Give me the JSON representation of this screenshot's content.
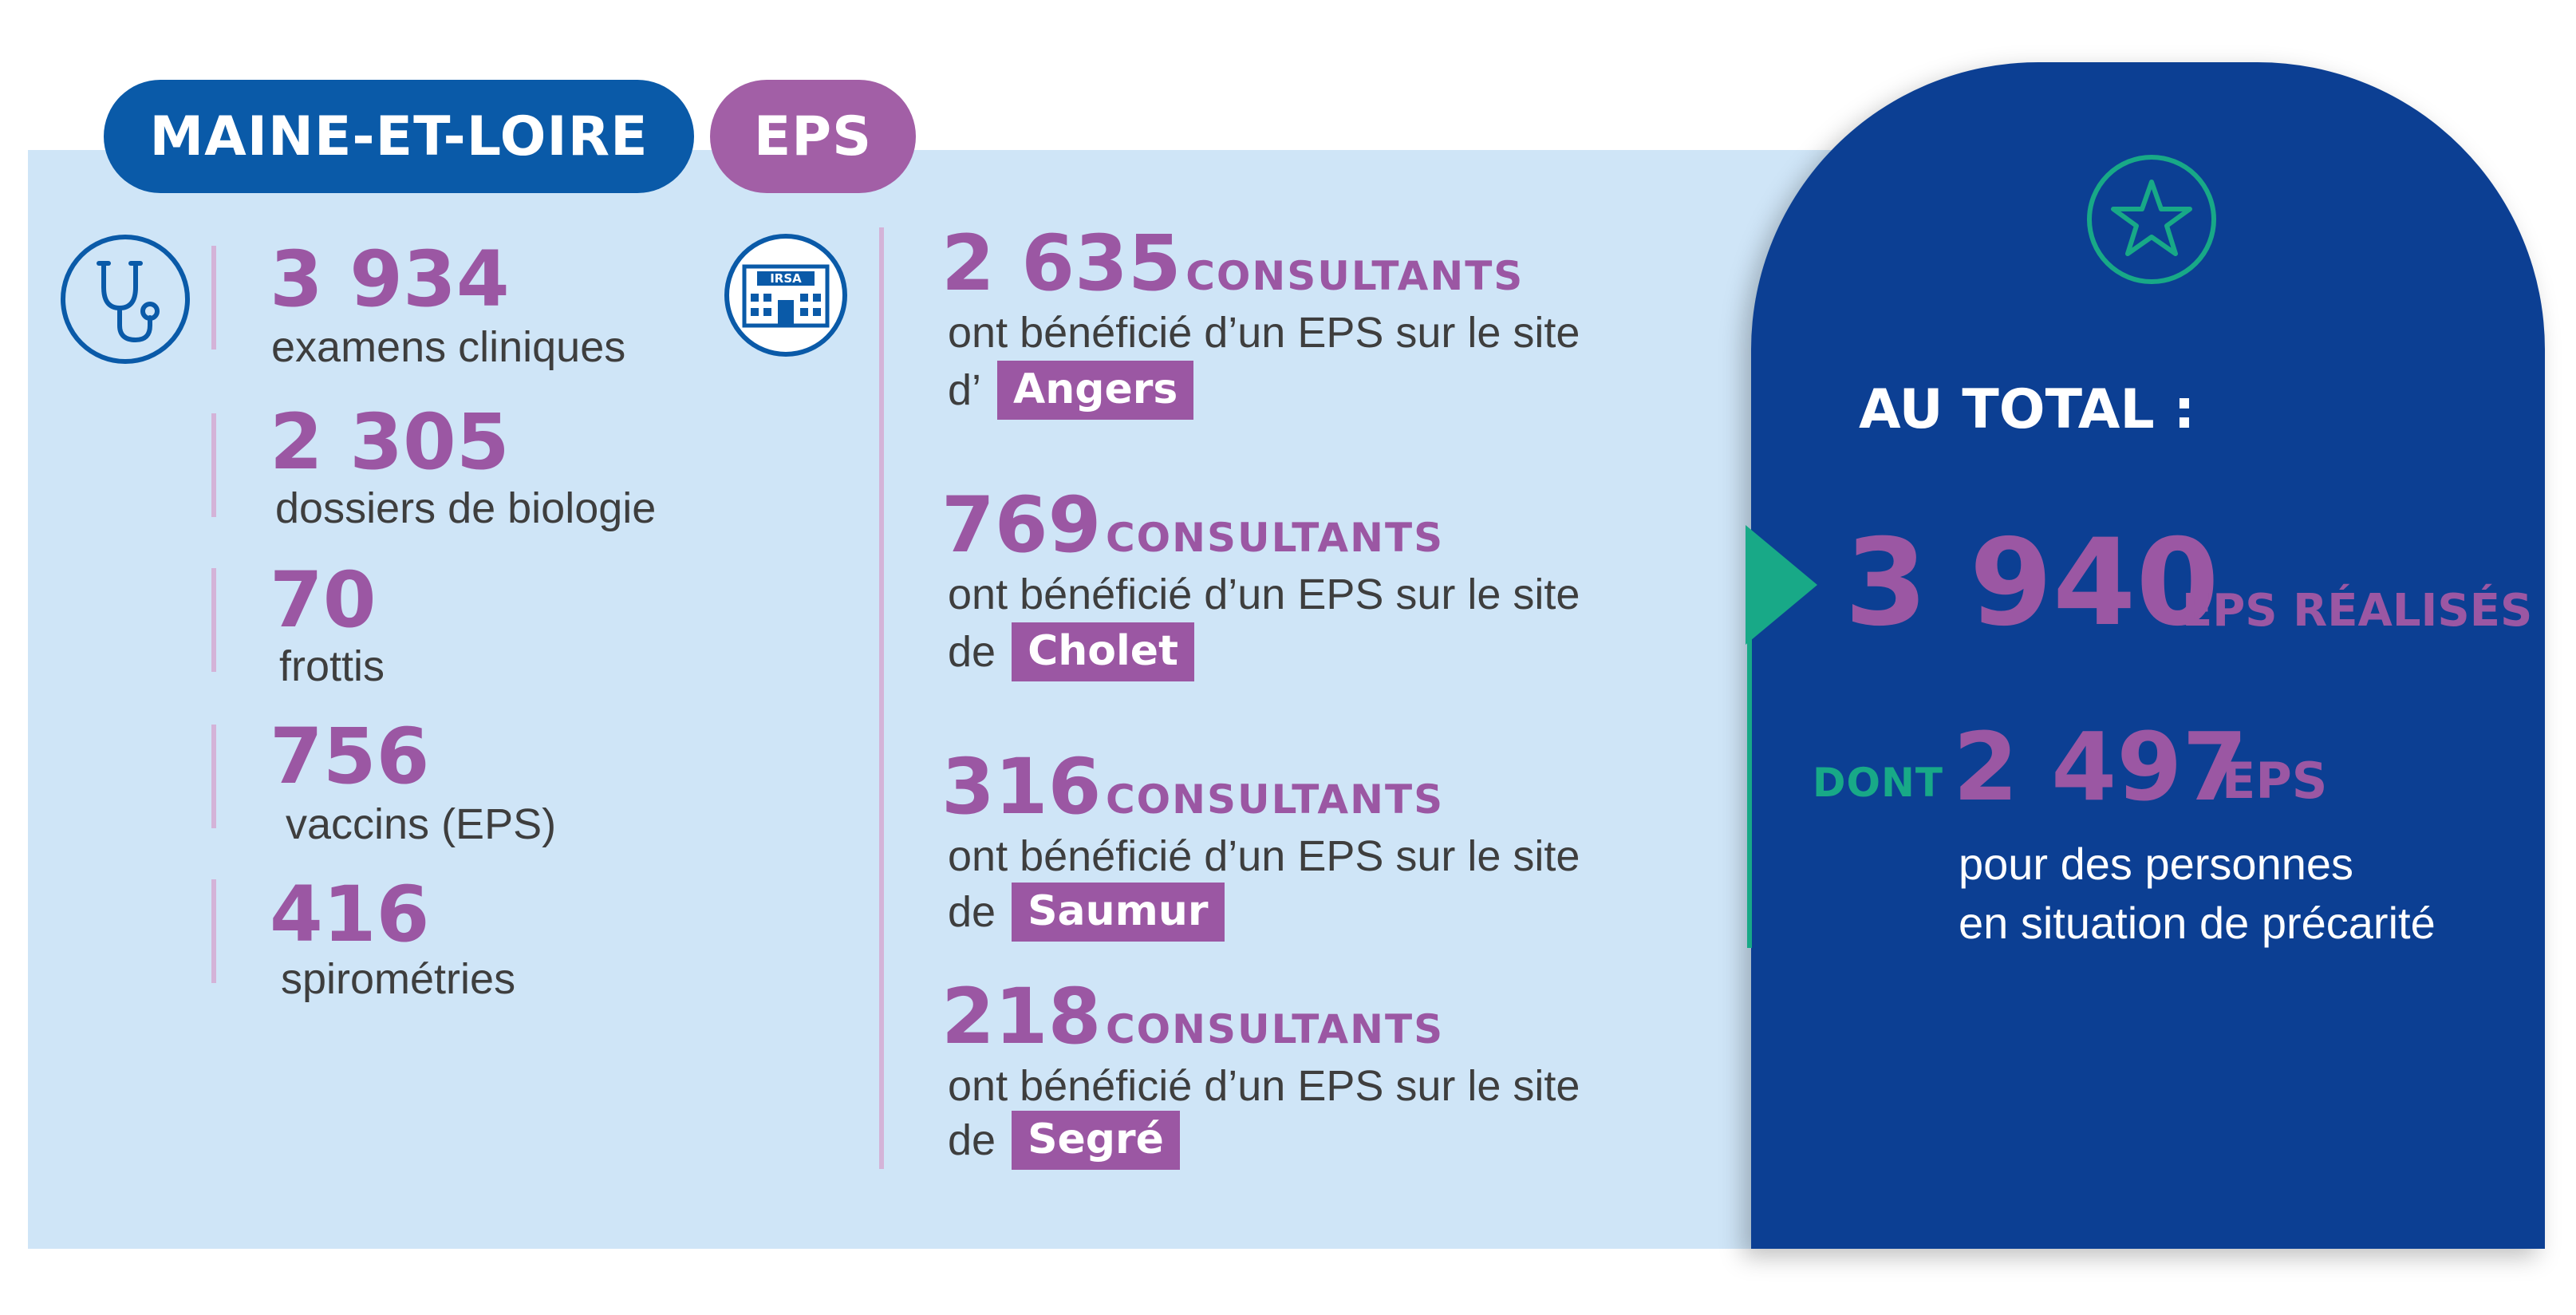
{
  "header": {
    "region": "MAINE-ET-LOIRE",
    "tag": "EPS"
  },
  "icons": {
    "left": "stethoscope-icon",
    "middle": "irsa-building-icon",
    "total": "star-icon",
    "irsa_label": "IRSA"
  },
  "exams": [
    {
      "value": "3 934",
      "label": "examens cliniques"
    },
    {
      "value": "2 305",
      "label": "dossiers de biologie"
    },
    {
      "value": "70",
      "label": "frottis"
    },
    {
      "value": "756",
      "label": "vaccins (EPS)"
    },
    {
      "value": "416",
      "label": "spirométries"
    }
  ],
  "sites": [
    {
      "value": "2 635",
      "unit": "CONSULTANTS",
      "text": "ont bénéficié d’un EPS sur le site",
      "prefix": "d’",
      "site": "Angers"
    },
    {
      "value": "769",
      "unit": "CONSULTANTS",
      "text": "ont bénéficié d’un EPS sur le site",
      "prefix": "de",
      "site": "Cholet"
    },
    {
      "value": "316",
      "unit": "CONSULTANTS",
      "text": "ont bénéficié d’un EPS sur le site",
      "prefix": "de",
      "site": "Saumur"
    },
    {
      "value": "218",
      "unit": "CONSULTANTS",
      "text": "ont bénéficié d’un EPS sur le site",
      "prefix": "de",
      "site": "Segré"
    }
  ],
  "total": {
    "title": "AU TOTAL :",
    "value": "3 940",
    "unit": "EPS RÉALISÉS",
    "dont_label": "DONT",
    "sub_value": "2 497",
    "sub_unit": "EPS",
    "sub_text_1": "pour des personnes",
    "sub_text_2": "en situation  de précarité"
  },
  "colors": {
    "light_bg": "#cfe5f7",
    "navy": "#0c3f93",
    "blue_pill": "#0a5aa8",
    "purple": "#9b57a3",
    "green": "#18a987"
  }
}
